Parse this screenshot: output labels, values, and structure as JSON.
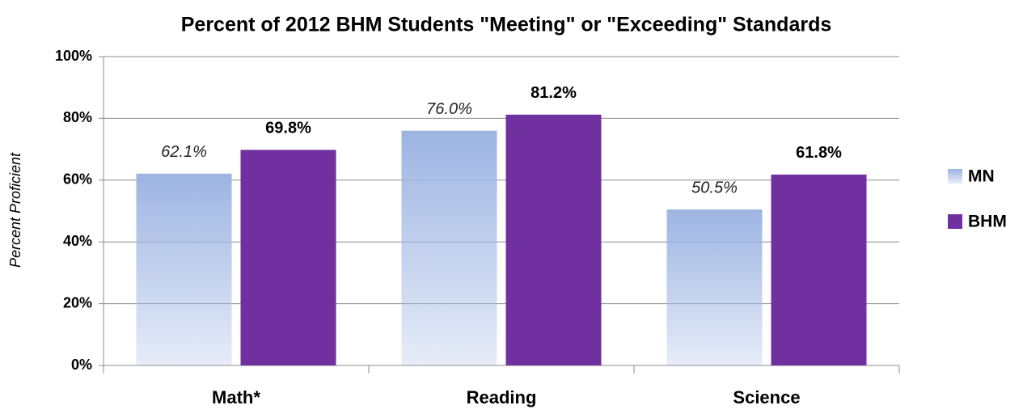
{
  "chart_data": {
    "type": "bar",
    "title": "Percent of 2012 BHM Students \"Meeting\" or \"Exceeding\" Standards",
    "y_label": "Percent Proficient",
    "categories": [
      "Math*",
      "Reading",
      "Science"
    ],
    "series": [
      {
        "name": "MN",
        "color": "#9db4e2",
        "values": [
          62.1,
          76.0,
          50.5
        ],
        "value_labels": [
          "62.1%",
          "76.0%",
          "50.5%"
        ]
      },
      {
        "name": "BHM",
        "color": "#7030a0",
        "values": [
          69.8,
          81.2,
          61.8
        ],
        "value_labels": [
          "69.8%",
          "81.2%",
          "61.8%"
        ]
      }
    ],
    "ylim": [
      0,
      100
    ],
    "yticks": [
      {
        "value": 0,
        "label": "0%"
      },
      {
        "value": 20,
        "label": "20%"
      },
      {
        "value": 40,
        "label": "40%"
      },
      {
        "value": 60,
        "label": "60%"
      },
      {
        "value": 80,
        "label": "80%"
      },
      {
        "value": 100,
        "label": "100%"
      }
    ],
    "grid": true,
    "legend": "right"
  }
}
